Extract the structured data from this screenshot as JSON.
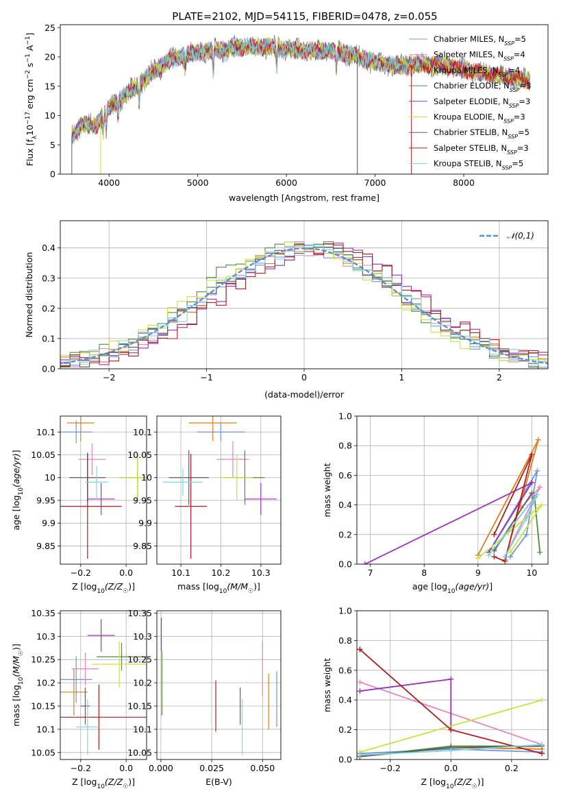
{
  "figure": {
    "title": "PLATE=2102, MJD=54115, FIBERID=0478, z=0.055"
  },
  "models": [
    {
      "name": "Chabrier MILES",
      "nssp": "5",
      "color": "#6f93dc"
    },
    {
      "name": "Salpeter MILES",
      "nssp": "4",
      "color": "#e383c0"
    },
    {
      "name": "Kroupa MILES",
      "nssp": "4",
      "color": "#e07b1a"
    },
    {
      "name": "Chabrier ELODIE",
      "nssp": "3",
      "color": "#4d8a3a"
    },
    {
      "name": "Salpeter ELODIE",
      "nssp": "3",
      "color": "#9a2fba"
    },
    {
      "name": "Kroupa ELODIE",
      "nssp": "3",
      "color": "#c9e040"
    },
    {
      "name": "Chabrier STELIB",
      "nssp": "5",
      "color": "#5a5a5a"
    },
    {
      "name": "Salpeter STELIB",
      "nssp": "3",
      "color": "#b01a1a"
    },
    {
      "name": "Kroupa STELIB",
      "nssp": "5",
      "color": "#7fd3e0"
    }
  ],
  "chart_data": [
    {
      "id": "spectrum",
      "type": "line",
      "xlabel": "wavelength [Angstrom, rest frame]",
      "ylabel_parts": [
        "Flux [f",
        "λ",
        "10",
        "−17",
        " erg cm",
        "−2",
        " s",
        "−1",
        " A",
        "−1",
        "]"
      ],
      "xlim": [
        3450,
        8950
      ],
      "ylim": [
        0,
        25.5
      ],
      "xticks": [
        4000,
        5000,
        6000,
        7000,
        8000
      ],
      "yticks": [
        0,
        5,
        10,
        15,
        20,
        25
      ],
      "continuum": [
        [
          3580,
          6.5
        ],
        [
          3700,
          8.5
        ],
        [
          3850,
          8.2
        ],
        [
          3950,
          10.5
        ],
        [
          4100,
          12.5
        ],
        [
          4300,
          14.8
        ],
        [
          4500,
          17.5
        ],
        [
          4700,
          19.5
        ],
        [
          4900,
          20.5
        ],
        [
          5100,
          21
        ],
        [
          5300,
          21.3
        ],
        [
          5500,
          21.7
        ],
        [
          5700,
          21.8
        ],
        [
          5900,
          21.5
        ],
        [
          6100,
          21.2
        ],
        [
          6300,
          21
        ],
        [
          6500,
          21
        ],
        [
          6700,
          20.5
        ],
        [
          6900,
          19.5
        ],
        [
          7100,
          18.8
        ],
        [
          7300,
          18.5
        ],
        [
          7500,
          18.8
        ],
        [
          7700,
          18.5
        ],
        [
          7900,
          18.2
        ],
        [
          8100,
          17.5
        ],
        [
          8300,
          17
        ],
        [
          8500,
          16.5
        ],
        [
          8700,
          16
        ]
      ],
      "dips": [
        [
          3935,
          3
        ],
        [
          3968,
          3.2
        ],
        [
          4101,
          2.5
        ],
        [
          4340,
          2.8
        ],
        [
          4861,
          2
        ],
        [
          5175,
          4
        ],
        [
          5890,
          3
        ],
        [
          6563,
          2.5
        ]
      ],
      "spikes": [
        [
          3580,
          0
        ],
        [
          3905,
          0
        ],
        [
          6800,
          0
        ],
        [
          7410,
          0
        ]
      ],
      "legend_loc": "upper right"
    },
    {
      "id": "residuals",
      "type": "step",
      "xlabel": "(data-model)/error",
      "ylabel": "Normed distribution",
      "xlim": [
        -2.5,
        2.5
      ],
      "ylim": [
        0,
        0.49
      ],
      "xticks": [
        -2,
        -1,
        0,
        1,
        2
      ],
      "yticks": [
        0.0,
        0.1,
        0.2,
        0.3,
        0.4
      ],
      "gaussian_label": "𝒩(0,1)",
      "grid": true,
      "legend_loc": "upper right"
    },
    {
      "id": "age_vs_Z",
      "type": "errorbar",
      "xlabel": "Z [log10(Z/Z☉)]",
      "ylabel": "age [log10(age/yr)]",
      "xlim": [
        -0.29,
        0.09
      ],
      "ylim": [
        9.81,
        10.135
      ],
      "xticks": [
        -0.2,
        0.0
      ],
      "yticks": [
        9.85,
        9.9,
        9.95,
        10.0,
        10.05,
        10.1
      ],
      "points": [
        {
          "x": -0.22,
          "y": 10.1,
          "xerr": 0.07,
          "yerr": 0.025
        },
        {
          "x": -0.15,
          "y": 10.04,
          "xerr": 0.06,
          "yerr": 0.035
        },
        {
          "x": -0.2,
          "y": 10.12,
          "xerr": 0.06,
          "yerr": 0.04
        },
        {
          "x": 0.05,
          "y": 10.0,
          "xerr": 0.08,
          "yerr": 0.05
        },
        {
          "x": -0.11,
          "y": 9.953,
          "xerr": 0.06,
          "yerr": 0.035
        },
        {
          "x": 0.05,
          "y": 10.0,
          "xerr": 0.08,
          "yerr": 0.05
        },
        {
          "x": -0.17,
          "y": 10.0,
          "xerr": 0.08,
          "yerr": 0.055
        },
        {
          "x": -0.17,
          "y": 9.937,
          "xerr": 0.15,
          "yerr": 0.115
        },
        {
          "x": -0.13,
          "y": 9.99,
          "xerr": 0.05,
          "yerr": 0.035
        }
      ]
    },
    {
      "id": "age_vs_mass",
      "type": "errorbar",
      "xlabel": "mass [log10(M/M☉)]",
      "ylabel": "",
      "xlim": [
        10.04,
        10.35
      ],
      "ylim": [
        9.81,
        10.135
      ],
      "xticks": [
        10.1,
        10.2,
        10.3
      ],
      "yticks": [
        9.85,
        9.9,
        9.95,
        10.0,
        10.05,
        10.1
      ],
      "points": [
        {
          "x": 10.2,
          "y": 10.1,
          "xerr": 0.06,
          "yerr": 0.02
        },
        {
          "x": 10.23,
          "y": 10.04,
          "xerr": 0.04,
          "yerr": 0.04
        },
        {
          "x": 10.18,
          "y": 10.12,
          "xerr": 0.06,
          "yerr": 0.04
        },
        {
          "x": 10.26,
          "y": 10.0,
          "xerr": 0.05,
          "yerr": 0.06
        },
        {
          "x": 10.3,
          "y": 9.953,
          "xerr": 0.04,
          "yerr": 0.035
        },
        {
          "x": 10.24,
          "y": 10.0,
          "xerr": 0.04,
          "yerr": 0.05
        },
        {
          "x": 10.12,
          "y": 10.0,
          "xerr": 0.05,
          "yerr": 0.06
        },
        {
          "x": 10.125,
          "y": 9.937,
          "xerr": 0.04,
          "yerr": 0.115
        },
        {
          "x": 10.105,
          "y": 9.99,
          "xerr": 0.05,
          "yerr": 0.03
        }
      ]
    },
    {
      "id": "weight_vs_age",
      "type": "line",
      "xlabel": "age [log10(age/yr)]",
      "ylabel": "mass weight",
      "xlim": [
        6.75,
        10.3
      ],
      "ylim": [
        0,
        1
      ],
      "xticks": [
        7,
        8,
        9,
        10
      ],
      "yticks": [
        0.0,
        0.2,
        0.4,
        0.6,
        0.8,
        1.0
      ],
      "series": [
        {
          "x": [
            9.2,
            10.1,
            9.9,
            9.6
          ],
          "y": [
            0.08,
            0.63,
            0.2,
            0.05
          ]
        },
        {
          "x": [
            9.5,
            10.15,
            9.8
          ],
          "y": [
            0.05,
            0.52,
            0.38
          ]
        },
        {
          "x": [
            9.0,
            10.12,
            9.5
          ],
          "y": [
            0.06,
            0.84,
            0.03
          ]
        },
        {
          "x": [
            9.3,
            10.05,
            10.15
          ],
          "y": [
            0.1,
            0.45,
            0.08
          ]
        },
        {
          "x": [
            6.9,
            10.0,
            9.2
          ],
          "y": [
            0.0,
            0.55,
            0.08
          ]
        },
        {
          "x": [
            9.0,
            10.18,
            9.6
          ],
          "y": [
            0.04,
            0.4,
            0.08
          ]
        },
        {
          "x": [
            9.3,
            10.0
          ],
          "y": [
            0.09,
            0.48
          ]
        },
        {
          "x": [
            9.3,
            10.0,
            9.5,
            9.3
          ],
          "y": [
            0.2,
            0.74,
            0.02,
            0.05
          ]
        },
        {
          "x": [
            9.2,
            10.1,
            9.9,
            9.5
          ],
          "y": [
            0.06,
            0.47,
            0.31,
            0.05
          ]
        }
      ]
    },
    {
      "id": "mass_vs_Z",
      "type": "errorbar",
      "xlabel": "Z [log10(Z/Z☉)]",
      "ylabel": "mass [log10(M/M☉)]",
      "xlim": [
        -0.29,
        0.09
      ],
      "ylim": [
        10.035,
        10.355
      ],
      "xticks": [
        -0.2,
        0.0
      ],
      "yticks": [
        10.05,
        10.1,
        10.15,
        10.2,
        10.25,
        10.3,
        10.35
      ],
      "points": [
        {
          "x": -0.22,
          "y": 10.207,
          "xerr": 0.07,
          "yerr": 0.05
        },
        {
          "x": -0.18,
          "y": 10.23,
          "xerr": 0.06,
          "yerr": 0.035
        },
        {
          "x": -0.23,
          "y": 10.18,
          "xerr": 0.06,
          "yerr": 0.05
        },
        {
          "x": -0.02,
          "y": 10.256,
          "xerr": 0.11,
          "yerr": 0.03
        },
        {
          "x": -0.11,
          "y": 10.302,
          "xerr": 0.06,
          "yerr": 0.035
        },
        {
          "x": -0.03,
          "y": 10.24,
          "xerr": 0.12,
          "yerr": 0.05
        },
        {
          "x": -0.18,
          "y": 10.15,
          "xerr": 0.02,
          "yerr": 0.04
        },
        {
          "x": -0.12,
          "y": 10.126,
          "xerr": 0.21,
          "yerr": 0.07
        },
        {
          "x": -0.17,
          "y": 10.105,
          "xerr": 0.05,
          "yerr": 0.06
        }
      ]
    },
    {
      "id": "mass_vs_EBV",
      "type": "errorbar",
      "xlabel": "E(B-V)",
      "ylabel": "",
      "xlim": [
        -0.002,
        0.059
      ],
      "ylim": [
        10.035,
        10.355
      ],
      "xticks": [
        0.0,
        0.025,
        0.05
      ],
      "yticks": [
        10.05,
        10.1,
        10.15,
        10.2,
        10.25,
        10.3,
        10.35
      ],
      "points": [
        {
          "x": 0.057,
          "y": 10.165,
          "xerr": 0,
          "yerr": 0.06
        },
        {
          "x": 0.05,
          "y": 10.23,
          "xerr": 0,
          "yerr": 0.06
        },
        {
          "x": 0.053,
          "y": 10.16,
          "xerr": 0,
          "yerr": 0.06
        },
        {
          "x": 0.0005,
          "y": 10.2,
          "xerr": 0,
          "yerr": 0.07
        },
        {
          "x": 0.0002,
          "y": 10.3,
          "xerr": 0,
          "yerr": 0.04
        },
        {
          "x": 0.0002,
          "y": 10.22,
          "xerr": 0,
          "yerr": 0.05
        },
        {
          "x": 0.039,
          "y": 10.15,
          "xerr": 0,
          "yerr": 0.04
        },
        {
          "x": 0.027,
          "y": 10.15,
          "xerr": 0,
          "yerr": 0.055
        },
        {
          "x": 0.04,
          "y": 10.105,
          "xerr": 0,
          "yerr": 0.06
        }
      ]
    },
    {
      "id": "weight_vs_Z",
      "type": "line",
      "xlabel": "Z [log10(Z/Z☉)]",
      "ylabel": "mass weight",
      "xlim": [
        -0.31,
        0.32
      ],
      "ylim": [
        0,
        1
      ],
      "xticks": [
        -0.2,
        0.0,
        0.2
      ],
      "yticks": [
        0.0,
        0.2,
        0.4,
        0.6,
        0.8,
        1.0
      ],
      "series": [
        {
          "x": [
            -0.3,
            0.0,
            0.3
          ],
          "y": [
            0.04,
            0.07,
            0.05
          ]
        },
        {
          "x": [
            -0.3,
            0.3
          ],
          "y": [
            0.52,
            0.1
          ]
        },
        {
          "x": [
            -0.3,
            0.0,
            0.3
          ],
          "y": [
            0.02,
            0.08,
            0.07
          ]
        },
        {
          "x": [
            -0.3,
            0.0,
            0.3
          ],
          "y": [
            0.02,
            0.09,
            0.09
          ]
        },
        {
          "x": [
            -0.3,
            0.0,
            0.0
          ],
          "y": [
            0.46,
            0.54,
            0.2
          ]
        },
        {
          "x": [
            -0.3,
            0.3
          ],
          "y": [
            0.05,
            0.4
          ]
        },
        {
          "x": [
            -0.3,
            0.0,
            0.3
          ],
          "y": [
            0.02,
            0.08,
            0.09
          ]
        },
        {
          "x": [
            -0.3,
            -0.3,
            0.0,
            0.3
          ],
          "y": [
            0.74,
            0.74,
            0.2,
            0.04
          ]
        },
        {
          "x": [
            -0.3,
            0.0,
            0.3
          ],
          "y": [
            0.03,
            0.06,
            0.1
          ]
        }
      ]
    }
  ]
}
